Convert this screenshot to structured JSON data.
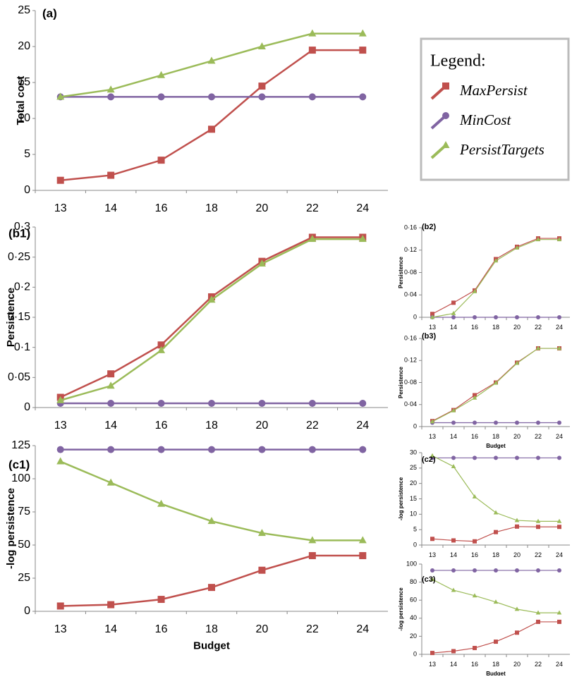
{
  "chart_data": [
    {
      "type": "line",
      "panel_label": "(a)",
      "y_label": "Total cost",
      "legend_title": "Legend:",
      "categories": [
        "13",
        "14",
        "16",
        "18",
        "20",
        "22",
        "24"
      ],
      "ylim": [
        0,
        25
      ],
      "yticks": [
        0,
        5,
        10,
        15,
        20,
        25
      ],
      "series": [
        {
          "name": "MaxPersist",
          "color": "#c0504d",
          "marker": "square",
          "values": [
            1.4,
            2.1,
            4.2,
            8.5,
            14.5,
            19.5,
            19.5
          ]
        },
        {
          "name": "MinCost",
          "color": "#8064a2",
          "marker": "circle",
          "values": [
            13,
            13,
            13,
            13,
            13,
            13,
            13
          ]
        },
        {
          "name": "PersistTargets",
          "color": "#9bbb59",
          "marker": "triangle",
          "values": [
            13,
            14,
            16,
            18,
            20,
            21.8,
            21.8
          ]
        }
      ]
    },
    {
      "type": "line",
      "panel_label": "(b1)",
      "y_label": "Persistence",
      "categories": [
        "13",
        "14",
        "16",
        "18",
        "20",
        "22",
        "24"
      ],
      "ylim": [
        0,
        0.3
      ],
      "yticks": [
        0,
        {
          "value": 0.05,
          "label": "0·05"
        },
        {
          "value": 0.1,
          "label": "0·1"
        },
        {
          "value": 0.15,
          "label": "0·15"
        },
        {
          "value": 0.2,
          "label": "0·2"
        },
        {
          "value": 0.25,
          "label": "0·25"
        },
        {
          "value": 0.3,
          "label": "0·3"
        }
      ],
      "series": [
        {
          "color": "#c0504d",
          "marker": "square",
          "values": [
            0.017,
            0.056,
            0.104,
            0.184,
            0.243,
            0.283,
            0.283
          ]
        },
        {
          "color": "#8064a2",
          "marker": "circle",
          "values": [
            0.007,
            0.007,
            0.007,
            0.007,
            0.007,
            0.007,
            0.007
          ]
        },
        {
          "color": "#9bbb59",
          "marker": "triangle",
          "values": [
            0.012,
            0.036,
            0.095,
            0.179,
            0.239,
            0.28,
            0.28
          ]
        }
      ]
    },
    {
      "type": "line",
      "panel_label": "(c1)",
      "y_label": "-log persistence",
      "x_label": "Budget",
      "categories": [
        "13",
        "14",
        "16",
        "18",
        "20",
        "22",
        "24"
      ],
      "ylim": [
        0,
        125
      ],
      "yticks": [
        0,
        25,
        50,
        75,
        100,
        125
      ],
      "series": [
        {
          "color": "#c0504d",
          "marker": "square",
          "values": [
            4,
            5,
            9,
            18,
            31,
            42,
            42
          ]
        },
        {
          "color": "#8064a2",
          "marker": "circle",
          "values": [
            122,
            122,
            122,
            122,
            122,
            122,
            122
          ]
        },
        {
          "color": "#9bbb59",
          "marker": "triangle",
          "values": [
            113,
            97,
            81,
            68,
            59,
            53.5,
            53.5
          ]
        }
      ]
    },
    {
      "type": "line",
      "panel_label": "(b2)",
      "y_label": "Persistence",
      "categories": [
        "13",
        "14",
        "16",
        "18",
        "20",
        "22",
        "24"
      ],
      "ylim": [
        0,
        0.16
      ],
      "yticks": [
        0,
        {
          "value": 0.04,
          "label": "0·04"
        },
        {
          "value": 0.08,
          "label": "0·08"
        },
        {
          "value": 0.12,
          "label": "0·12"
        },
        {
          "value": 0.16,
          "label": "0·16"
        }
      ],
      "series": [
        {
          "color": "#c0504d",
          "marker": "square",
          "values": [
            0.006,
            0.026,
            0.048,
            0.104,
            0.126,
            0.141,
            0.141
          ]
        },
        {
          "color": "#8064a2",
          "marker": "circle",
          "values": [
            0,
            0,
            0,
            0,
            0,
            0,
            0
          ]
        },
        {
          "color": "#9bbb59",
          "marker": "triangle",
          "values": [
            0,
            0.007,
            0.046,
            0.101,
            0.124,
            0.139,
            0.139
          ]
        }
      ]
    },
    {
      "type": "line",
      "panel_label": "(b3)",
      "y_label": "Persistence",
      "x_label": "Budget",
      "categories": [
        "13",
        "14",
        "16",
        "18",
        "20",
        "22",
        "24"
      ],
      "ylim": [
        0,
        0.16
      ],
      "yticks": [
        0,
        {
          "value": 0.04,
          "label": "0·04"
        },
        {
          "value": 0.08,
          "label": "0·08"
        },
        {
          "value": 0.12,
          "label": "0·12"
        },
        {
          "value": 0.16,
          "label": "0·16"
        }
      ],
      "series": [
        {
          "color": "#c0504d",
          "marker": "square",
          "values": [
            0.01,
            0.03,
            0.057,
            0.08,
            0.116,
            0.142,
            0.142
          ]
        },
        {
          "color": "#8064a2",
          "marker": "circle",
          "values": [
            0.007,
            0.007,
            0.007,
            0.007,
            0.007,
            0.007,
            0.007
          ]
        },
        {
          "color": "#9bbb59",
          "marker": "triangle",
          "values": [
            0.009,
            0.029,
            0.052,
            0.079,
            0.115,
            0.142,
            0.142
          ]
        }
      ]
    },
    {
      "type": "line",
      "panel_label": "(c2)",
      "y_label": "-log persistence",
      "categories": [
        "13",
        "14",
        "16",
        "18",
        "20",
        "22",
        "24"
      ],
      "ylim": [
        0,
        30
      ],
      "yticks": [
        0,
        5,
        10,
        15,
        20,
        25,
        30
      ],
      "series": [
        {
          "color": "#c0504d",
          "marker": "square",
          "values": [
            2,
            1.5,
            1.2,
            4.2,
            6,
            5.9,
            5.9
          ]
        },
        {
          "color": "#8064a2",
          "marker": "circle",
          "values": [
            28.3,
            28.3,
            28.3,
            28.3,
            28.3,
            28.3,
            28.3
          ]
        },
        {
          "color": "#9bbb59",
          "marker": "triangle",
          "values": [
            29,
            25.5,
            15.7,
            10.5,
            8,
            7.7,
            7.7
          ]
        }
      ]
    },
    {
      "type": "line",
      "panel_label": "(c3)",
      "y_label": "-log persistence",
      "x_label": "Budget",
      "categories": [
        "13",
        "14",
        "16",
        "18",
        "20",
        "22",
        "24"
      ],
      "ylim": [
        0,
        100
      ],
      "yticks": [
        0,
        20,
        40,
        60,
        80,
        100
      ],
      "series": [
        {
          "color": "#c0504d",
          "marker": "square",
          "values": [
            1.5,
            3.5,
            7,
            14,
            24,
            36,
            36
          ]
        },
        {
          "color": "#8064a2",
          "marker": "circle",
          "values": [
            93,
            93,
            93,
            93,
            93,
            93,
            93
          ]
        },
        {
          "color": "#9bbb59",
          "marker": "triangle",
          "values": [
            83,
            71,
            65,
            58,
            50,
            46,
            46
          ]
        }
      ]
    }
  ]
}
